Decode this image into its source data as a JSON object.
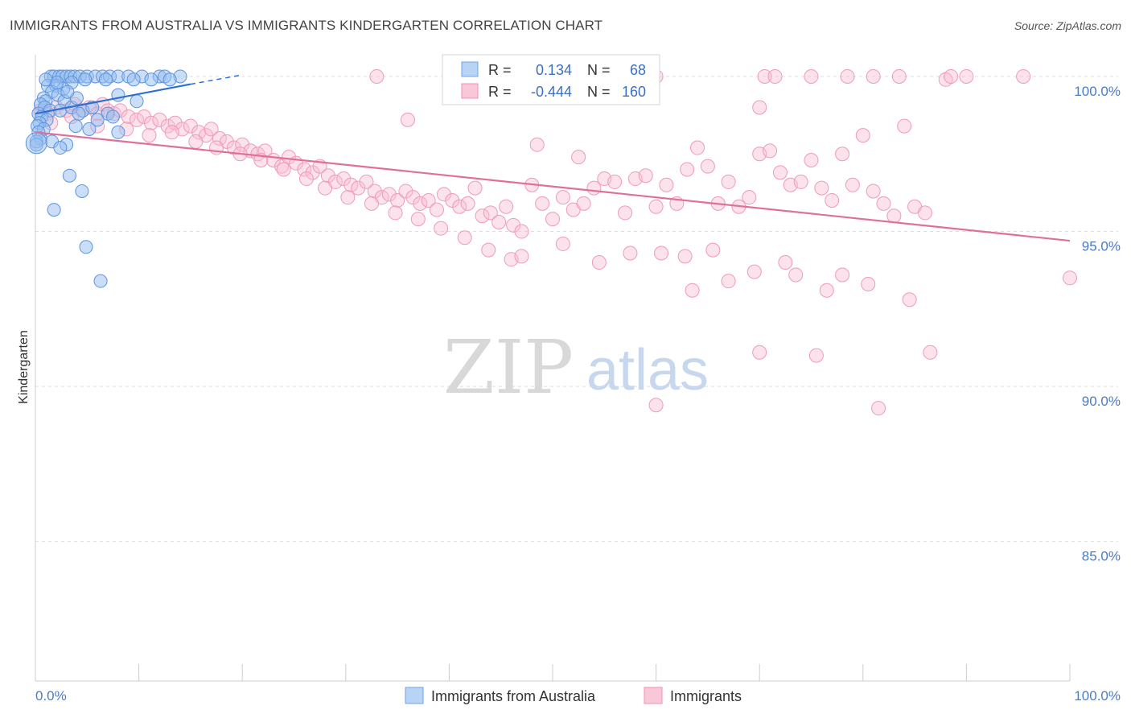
{
  "header": {
    "title": "IMMIGRANTS FROM AUSTRALIA VS IMMIGRANTS KINDERGARTEN CORRELATION CHART",
    "source": "Source: ZipAtlas.com"
  },
  "watermark": {
    "zip": "ZIP",
    "atlas": "atlas"
  },
  "legend_box": {
    "rows": [
      {
        "r_label": "R =",
        "r_value": "0.134",
        "n_label": "N =",
        "n_value": "68"
      },
      {
        "r_label": "R =",
        "r_value": "-0.444",
        "n_label": "N =",
        "n_value": "160"
      }
    ]
  },
  "chart_data": {
    "type": "scatter",
    "title": "IMMIGRANTS FROM AUSTRALIA VS IMMIGRANTS KINDERGARTEN CORRELATION CHART",
    "xlabel": "",
    "ylabel": "Kindergarten",
    "xlim": [
      0,
      100
    ],
    "ylim": [
      80.5,
      100.7
    ],
    "x_tick_labels": [
      "0.0%",
      "100.0%"
    ],
    "y_ticks": [
      100,
      95,
      90,
      85
    ],
    "y_tick_labels": [
      "100.0%",
      "95.0%",
      "90.0%",
      "85.0%"
    ],
    "grid": "horizontal dashed",
    "legend_position": "bottom-center",
    "colors": {
      "australia": "#6fa3e6",
      "immigrants": "#f28fb0",
      "australia_line": "#2f6fcf",
      "immigrants_line": "#e0709a",
      "tick_text": "#4a7cc9"
    },
    "series": [
      {
        "name": "Immigrants from Australia",
        "color": "#6fa3e6",
        "r": 0.134,
        "n": 68,
        "trend": {
          "x": [
            0,
            15
          ],
          "y": [
            98.8,
            99.75
          ]
        },
        "trend_dashed": {
          "x": [
            15,
            20
          ],
          "y": [
            99.75,
            100.05
          ]
        },
        "points": [
          [
            1.5,
            100
          ],
          [
            1.8,
            100
          ],
          [
            2.3,
            100
          ],
          [
            2.6,
            100
          ],
          [
            3.0,
            100
          ],
          [
            3.4,
            100
          ],
          [
            3.8,
            100
          ],
          [
            4.3,
            100
          ],
          [
            5.0,
            100
          ],
          [
            5.8,
            100
          ],
          [
            6.5,
            100
          ],
          [
            7.2,
            100
          ],
          [
            8.0,
            100
          ],
          [
            9.0,
            100
          ],
          [
            10.3,
            100
          ],
          [
            12.0,
            100
          ],
          [
            12.5,
            100
          ],
          [
            14.0,
            100
          ],
          [
            1.2,
            99.7
          ],
          [
            2.0,
            99.7
          ],
          [
            3.5,
            99.8
          ],
          [
            2.7,
            99.6
          ],
          [
            1.6,
            99.5
          ],
          [
            2.2,
            99.4
          ],
          [
            0.8,
            99.3
          ],
          [
            1.0,
            99.2
          ],
          [
            2.8,
            99.2
          ],
          [
            0.5,
            99.1
          ],
          [
            0.9,
            99.0
          ],
          [
            1.4,
            98.9
          ],
          [
            0.3,
            98.8
          ],
          [
            2.4,
            98.9
          ],
          [
            0.6,
            98.7
          ],
          [
            1.1,
            98.6
          ],
          [
            0.4,
            98.5
          ],
          [
            0.2,
            98.4
          ],
          [
            0.8,
            98.3
          ],
          [
            0.3,
            98.2
          ],
          [
            0.5,
            98.0
          ],
          [
            0.1,
            97.9
          ],
          [
            1.6,
            97.9
          ],
          [
            3.0,
            97.8
          ],
          [
            2.4,
            97.7
          ],
          [
            0.1,
            97.8
          ],
          [
            3.5,
            99.0
          ],
          [
            4.0,
            99.3
          ],
          [
            4.6,
            98.9
          ],
          [
            5.5,
            99.0
          ],
          [
            7.0,
            98.8
          ],
          [
            7.5,
            98.7
          ],
          [
            3.9,
            98.4
          ],
          [
            8.0,
            99.4
          ],
          [
            9.8,
            99.2
          ],
          [
            4.2,
            98.8
          ],
          [
            6.0,
            98.6
          ],
          [
            5.2,
            98.3
          ],
          [
            8.0,
            98.2
          ],
          [
            3.3,
            96.8
          ],
          [
            4.5,
            96.3
          ],
          [
            1.8,
            95.7
          ],
          [
            4.9,
            94.5
          ],
          [
            6.3,
            93.4
          ],
          [
            1.0,
            99.9
          ],
          [
            2.1,
            99.8
          ],
          [
            3.1,
            99.5
          ],
          [
            4.8,
            99.9
          ],
          [
            6.8,
            99.9
          ],
          [
            9.5,
            99.9
          ],
          [
            11.2,
            99.9
          ],
          [
            13.0,
            99.9
          ]
        ]
      },
      {
        "name": "Immigrants",
        "color": "#f28fb0",
        "r": -0.444,
        "n": 160,
        "trend": {
          "x": [
            0,
            100
          ],
          "y": [
            98.2,
            94.7
          ]
        },
        "points": [
          [
            0.5,
            98.9
          ],
          [
            1.2,
            98.8
          ],
          [
            2.0,
            99.0
          ],
          [
            3.0,
            98.9
          ],
          [
            3.8,
            99.1
          ],
          [
            4.5,
            98.9
          ],
          [
            5.2,
            99.0
          ],
          [
            6.0,
            98.8
          ],
          [
            6.5,
            99.1
          ],
          [
            7.0,
            98.9
          ],
          [
            7.6,
            98.8
          ],
          [
            8.2,
            98.9
          ],
          [
            9.0,
            98.7
          ],
          [
            9.8,
            98.6
          ],
          [
            10.5,
            98.7
          ],
          [
            11.2,
            98.5
          ],
          [
            12.0,
            98.6
          ],
          [
            12.8,
            98.4
          ],
          [
            13.5,
            98.5
          ],
          [
            14.2,
            98.3
          ],
          [
            15.0,
            98.4
          ],
          [
            15.8,
            98.2
          ],
          [
            16.5,
            98.1
          ],
          [
            17.0,
            98.3
          ],
          [
            17.8,
            98.0
          ],
          [
            18.5,
            97.9
          ],
          [
            19.2,
            97.7
          ],
          [
            20.0,
            97.8
          ],
          [
            20.8,
            97.6
          ],
          [
            21.5,
            97.5
          ],
          [
            22.2,
            97.6
          ],
          [
            23.0,
            97.3
          ],
          [
            23.8,
            97.1
          ],
          [
            24.5,
            97.4
          ],
          [
            25.2,
            97.2
          ],
          [
            26.0,
            97.0
          ],
          [
            26.8,
            96.9
          ],
          [
            27.5,
            97.1
          ],
          [
            28.3,
            96.8
          ],
          [
            29.0,
            96.6
          ],
          [
            29.8,
            96.7
          ],
          [
            30.5,
            96.5
          ],
          [
            31.2,
            96.4
          ],
          [
            32.0,
            96.6
          ],
          [
            32.8,
            96.3
          ],
          [
            33.5,
            96.1
          ],
          [
            34.2,
            96.2
          ],
          [
            35.0,
            96.0
          ],
          [
            35.8,
            96.3
          ],
          [
            36.5,
            96.1
          ],
          [
            37.2,
            95.9
          ],
          [
            38.0,
            96.0
          ],
          [
            38.8,
            95.7
          ],
          [
            39.5,
            96.2
          ],
          [
            40.3,
            96.0
          ],
          [
            41.0,
            95.8
          ],
          [
            41.8,
            95.9
          ],
          [
            42.5,
            96.4
          ],
          [
            43.2,
            95.5
          ],
          [
            44.0,
            95.6
          ],
          [
            44.8,
            95.3
          ],
          [
            45.5,
            95.8
          ],
          [
            46.2,
            95.2
          ],
          [
            47.0,
            95.0
          ],
          [
            48.0,
            96.5
          ],
          [
            49.0,
            95.9
          ],
          [
            50.0,
            95.4
          ],
          [
            51.0,
            96.1
          ],
          [
            52.0,
            95.7
          ],
          [
            53.0,
            95.9
          ],
          [
            54.0,
            96.4
          ],
          [
            55.0,
            96.7
          ],
          [
            56.0,
            96.6
          ],
          [
            57.0,
            95.6
          ],
          [
            58.0,
            96.7
          ],
          [
            59.0,
            96.8
          ],
          [
            60.0,
            95.8
          ],
          [
            61.0,
            96.5
          ],
          [
            62.0,
            95.9
          ],
          [
            63.0,
            97.0
          ],
          [
            64.0,
            97.7
          ],
          [
            65.0,
            97.1
          ],
          [
            66.0,
            95.9
          ],
          [
            67.0,
            96.6
          ],
          [
            68.0,
            95.8
          ],
          [
            69.0,
            96.1
          ],
          [
            70.0,
            97.5
          ],
          [
            71.0,
            97.6
          ],
          [
            72.0,
            96.9
          ],
          [
            73.0,
            96.5
          ],
          [
            74.0,
            96.6
          ],
          [
            75.0,
            97.3
          ],
          [
            76.0,
            96.4
          ],
          [
            77.0,
            96.0
          ],
          [
            78.0,
            97.5
          ],
          [
            79.0,
            96.5
          ],
          [
            80.0,
            98.1
          ],
          [
            81.0,
            96.3
          ],
          [
            82.0,
            95.9
          ],
          [
            83.0,
            95.5
          ],
          [
            84.0,
            98.4
          ],
          [
            85.0,
            95.8
          ],
          [
            86.0,
            95.6
          ],
          [
            1.5,
            98.5
          ],
          [
            3.5,
            98.7
          ],
          [
            6.0,
            98.4
          ],
          [
            8.8,
            98.3
          ],
          [
            11.0,
            98.1
          ],
          [
            13.2,
            98.2
          ],
          [
            15.5,
            97.9
          ],
          [
            17.5,
            97.7
          ],
          [
            19.8,
            97.5
          ],
          [
            21.8,
            97.3
          ],
          [
            24.0,
            97.0
          ],
          [
            26.2,
            96.7
          ],
          [
            28.0,
            96.4
          ],
          [
            30.2,
            96.1
          ],
          [
            32.5,
            95.9
          ],
          [
            34.8,
            95.6
          ],
          [
            37.0,
            95.4
          ],
          [
            39.2,
            95.1
          ],
          [
            41.5,
            94.8
          ],
          [
            43.8,
            94.4
          ],
          [
            46.0,
            94.1
          ],
          [
            36.0,
            98.6
          ],
          [
            48.5,
            97.8
          ],
          [
            52.5,
            97.4
          ],
          [
            60.5,
            94.3
          ],
          [
            62.8,
            94.2
          ],
          [
            65.5,
            94.4
          ],
          [
            70.0,
            91.1
          ],
          [
            72.5,
            94.0
          ],
          [
            75.5,
            91.0
          ],
          [
            78.0,
            93.6
          ],
          [
            81.5,
            89.3
          ],
          [
            86.5,
            91.1
          ],
          [
            88.0,
            99.9
          ],
          [
            95.5,
            100
          ],
          [
            100,
            93.5
          ],
          [
            33.0,
            100
          ],
          [
            43.0,
            99.9
          ],
          [
            51.5,
            99.9
          ],
          [
            55.0,
            100
          ],
          [
            58.0,
            100
          ],
          [
            60.0,
            100
          ],
          [
            70.0,
            99.0
          ],
          [
            70.5,
            100
          ],
          [
            71.5,
            100
          ],
          [
            75.0,
            100
          ],
          [
            78.5,
            100
          ],
          [
            81.0,
            100
          ],
          [
            83.5,
            100
          ],
          [
            88.5,
            100
          ],
          [
            90.0,
            100
          ],
          [
            47.0,
            94.2
          ],
          [
            51.0,
            94.6
          ],
          [
            54.5,
            94.0
          ],
          [
            57.5,
            94.3
          ],
          [
            60.0,
            89.4
          ],
          [
            63.5,
            93.1
          ],
          [
            67.0,
            93.4
          ],
          [
            69.5,
            93.7
          ],
          [
            73.5,
            93.6
          ],
          [
            76.5,
            93.1
          ],
          [
            80.5,
            93.3
          ],
          [
            84.5,
            92.8
          ]
        ]
      }
    ]
  },
  "bottom_legend": {
    "items": [
      {
        "label": "Immigrants from Australia",
        "color": "#b9d3f4",
        "border": "#6fa3e6"
      },
      {
        "label": "Immigrants",
        "color": "#f9c8d8",
        "border": "#f28fb0"
      }
    ]
  }
}
